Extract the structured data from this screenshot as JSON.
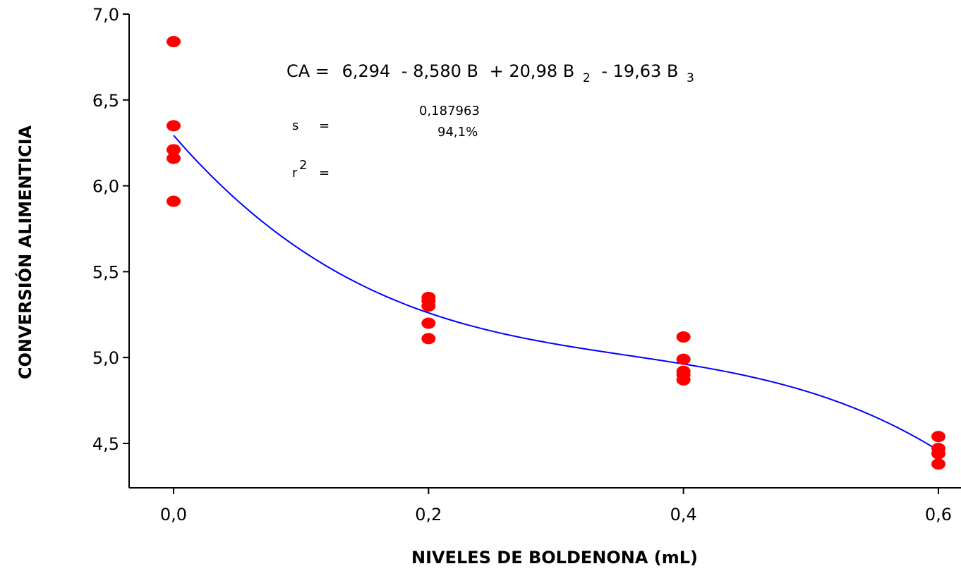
{
  "chart_data": {
    "type": "scatter",
    "xlabel": "NIVELES DE BOLDENONA (mL)",
    "ylabel": "CONVERSIÓN ALIMENTICIA",
    "xlim": [
      -0.035,
      0.61
    ],
    "ylim": [
      4.27,
      7.0
    ],
    "x_ticks": [
      0.0,
      0.2,
      0.4,
      0.6
    ],
    "x_tick_labels": [
      "0,0",
      "0,2",
      "0,4",
      "0,6"
    ],
    "y_ticks": [
      4.5,
      5.0,
      5.5,
      6.0,
      6.5,
      7.0
    ],
    "y_tick_labels": [
      "4,5",
      "5,0",
      "5,5",
      "6,0",
      "6,5",
      "7,0"
    ],
    "grid": false,
    "series": [
      {
        "type": "scatter",
        "color": "#ff0000",
        "points": [
          [
            0.0,
            6.84
          ],
          [
            0.0,
            6.35
          ],
          [
            0.0,
            6.21
          ],
          [
            0.0,
            6.16
          ],
          [
            0.0,
            5.91
          ],
          [
            0.2,
            5.35
          ],
          [
            0.2,
            5.33
          ],
          [
            0.2,
            5.3
          ],
          [
            0.2,
            5.2
          ],
          [
            0.2,
            5.11
          ],
          [
            0.4,
            5.12
          ],
          [
            0.4,
            4.99
          ],
          [
            0.4,
            4.92
          ],
          [
            0.4,
            4.9
          ],
          [
            0.4,
            4.87
          ],
          [
            0.6,
            4.54
          ],
          [
            0.6,
            4.47
          ],
          [
            0.6,
            4.44
          ],
          [
            0.6,
            4.38
          ]
        ]
      },
      {
        "type": "line",
        "color": "#0000ff",
        "equation": {
          "b0": 6.294,
          "b1": -8.58,
          "b2": 20.98,
          "b3": -19.63
        },
        "x_range": [
          0.0,
          0.6
        ]
      }
    ],
    "annotations": {
      "eq_lhs": "CA =",
      "eq_b0": "6,294",
      "eq_t1": "- 8,580 B",
      "eq_t2": "+ 20,98 B",
      "eq_t2_sub": "2",
      "eq_t3": "- 19,63 B",
      "eq_t3_sub": "3",
      "s_label": "s",
      "s_value": "0,187963",
      "r2_label": "r",
      "r2_sup": "2",
      "r2_value": "94,1%",
      "equals": "="
    }
  }
}
